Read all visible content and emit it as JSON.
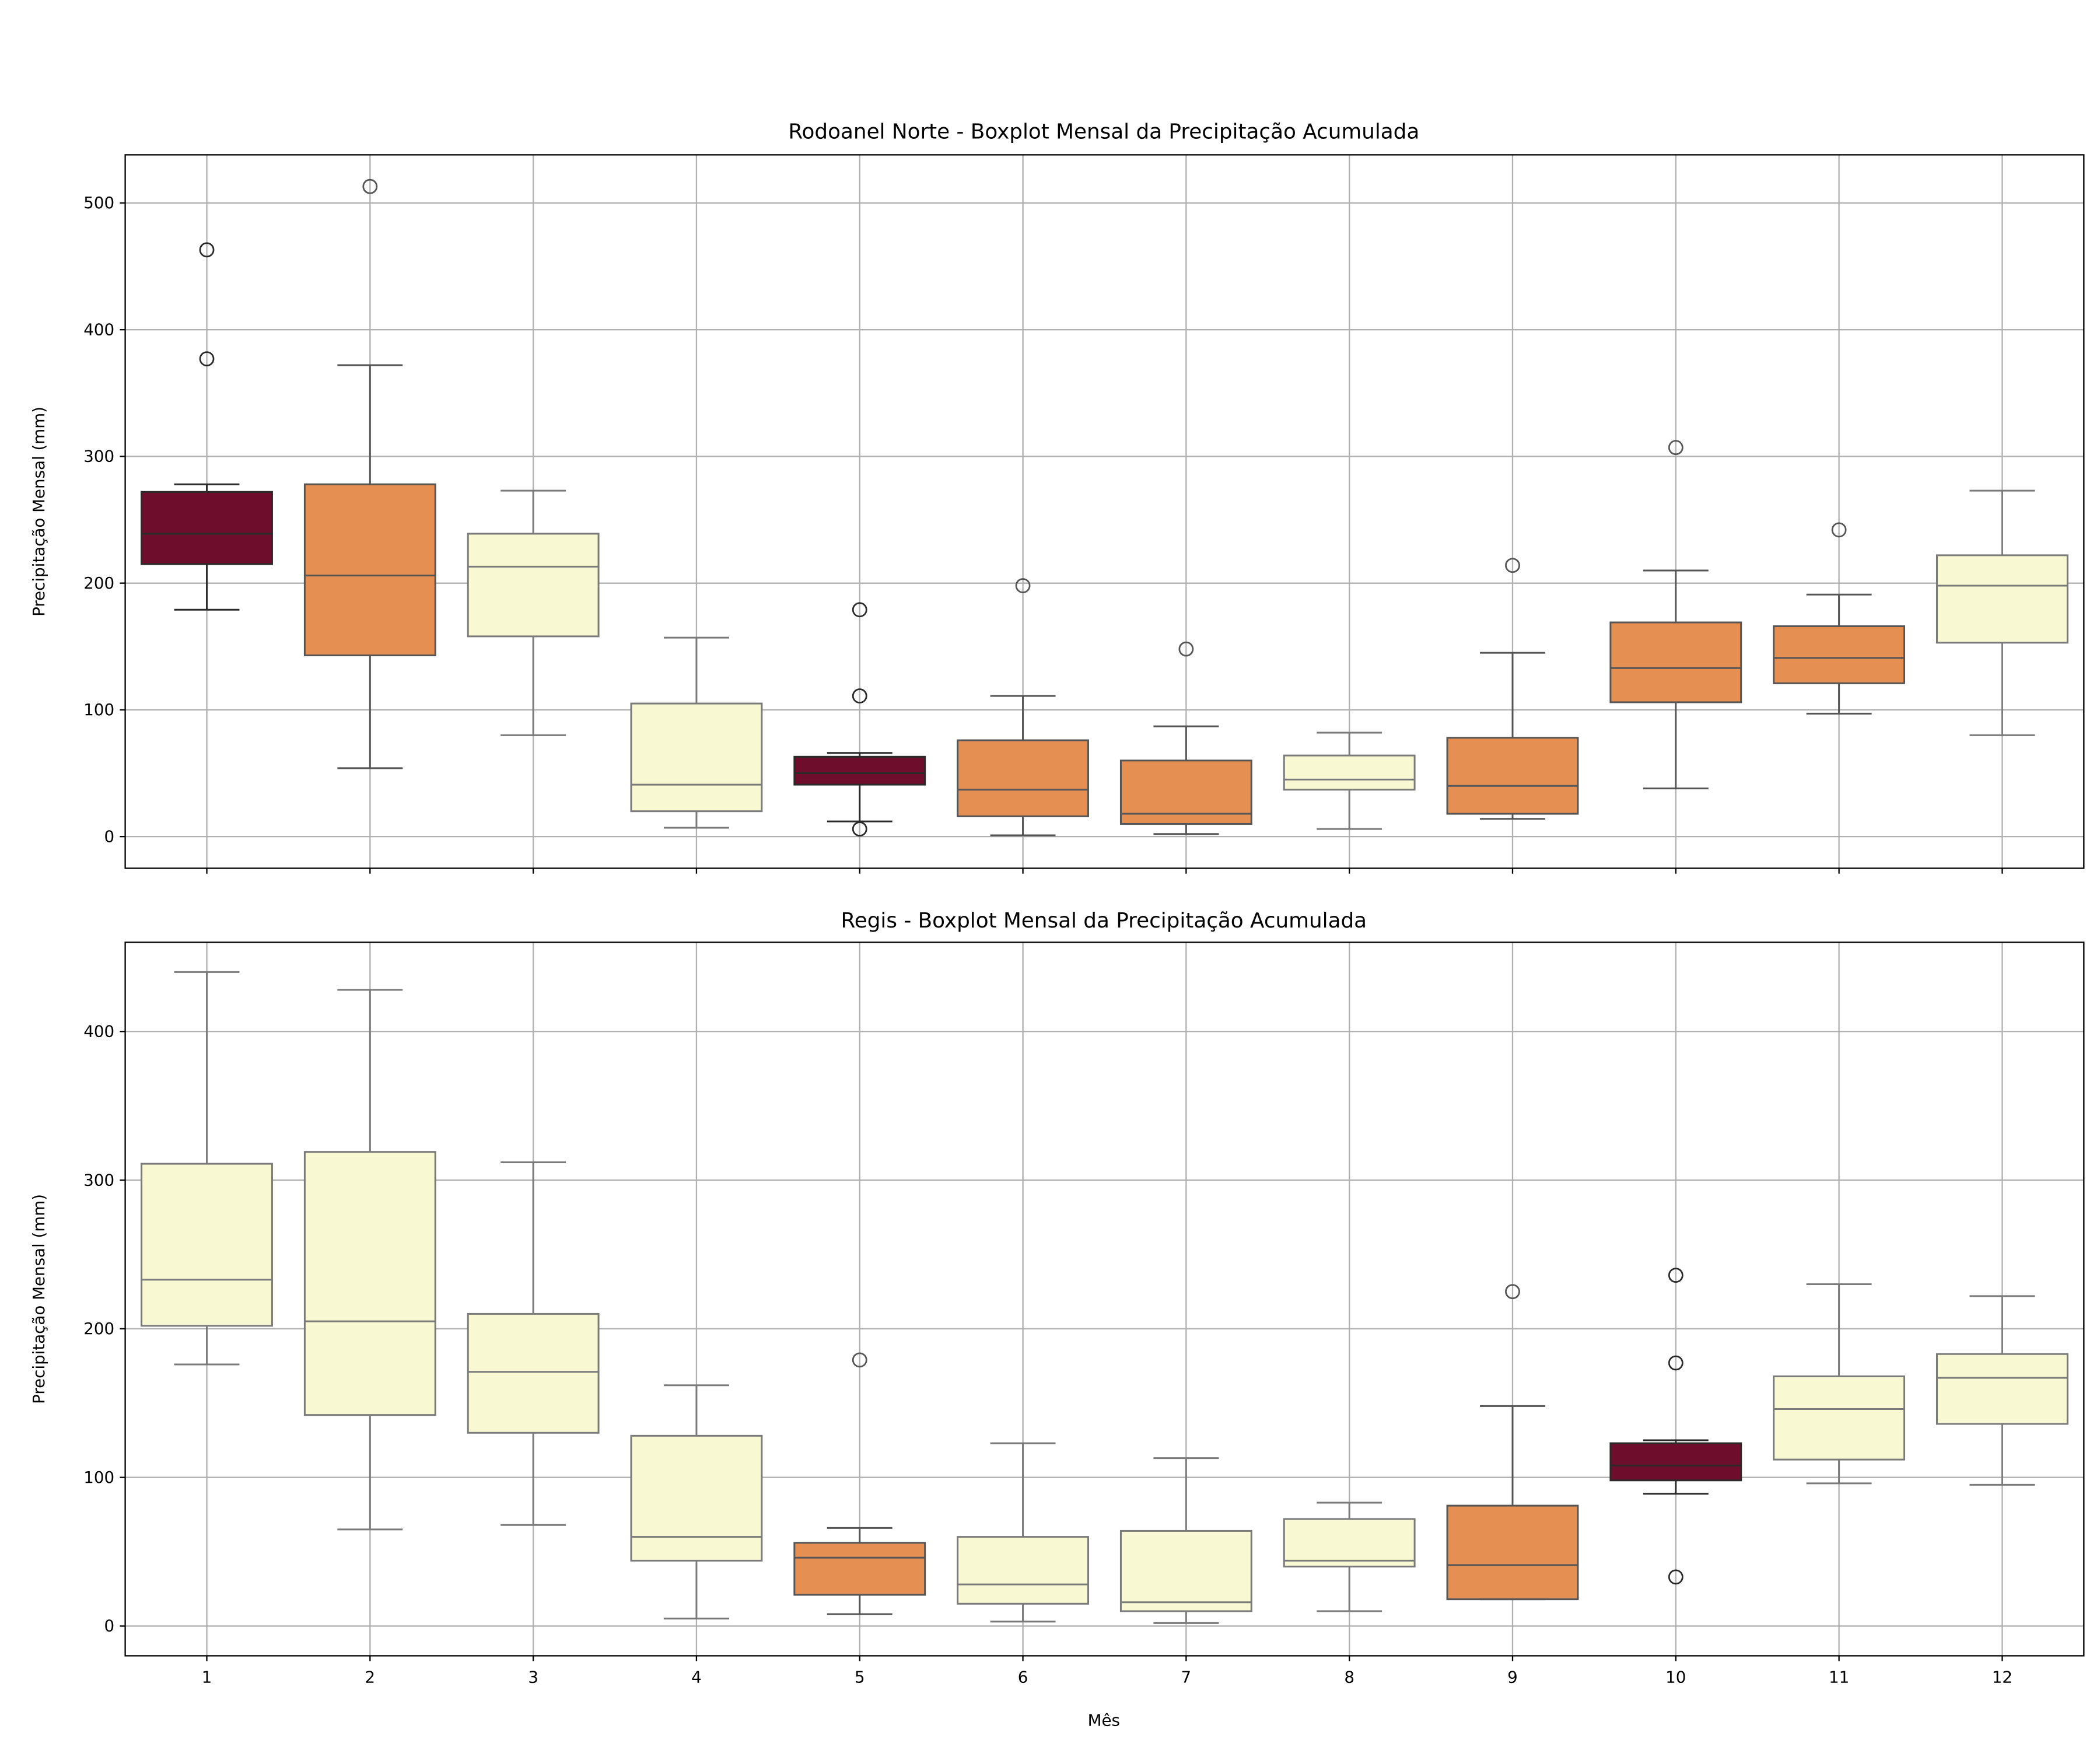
{
  "chart_data": [
    {
      "type": "box",
      "title": "Rodoanel Norte - Boxplot Mensal da Precipitação Acumulada",
      "xlabel": "",
      "ylabel": "Precipitação Mensal (mm)",
      "ylim": [
        -25,
        538
      ],
      "yticks": [
        0,
        100,
        200,
        300,
        400,
        500
      ],
      "grid": true,
      "categories": [
        "1",
        "2",
        "3",
        "4",
        "5",
        "6",
        "7",
        "8",
        "9",
        "10",
        "11",
        "12"
      ],
      "boxes": [
        {
          "month": "1",
          "whislo": 179,
          "q1": 215,
          "med": 239,
          "q3": 272,
          "whishi": 278,
          "fliers": [
            377,
            463
          ],
          "color": "#6e0d2c"
        },
        {
          "month": "2",
          "whislo": 54,
          "q1": 143,
          "med": 206,
          "q3": 278,
          "whishi": 372,
          "fliers": [
            513
          ],
          "color": "#e68f52"
        },
        {
          "month": "3",
          "whislo": 80,
          "q1": 158,
          "med": 213,
          "q3": 239,
          "whishi": 273,
          "fliers": [],
          "color": "#f8f8d2"
        },
        {
          "month": "4",
          "whislo": 7,
          "q1": 20,
          "med": 41,
          "q3": 105,
          "whishi": 157,
          "fliers": [],
          "color": "#f8f8d2"
        },
        {
          "month": "5",
          "whislo": 12,
          "q1": 41,
          "med": 50,
          "q3": 63,
          "whishi": 66,
          "fliers": [
            6,
            111,
            179
          ],
          "color": "#6e0d2c"
        },
        {
          "month": "6",
          "whislo": 1,
          "q1": 16,
          "med": 37,
          "q3": 76,
          "whishi": 111,
          "fliers": [
            198
          ],
          "color": "#e68f52"
        },
        {
          "month": "7",
          "whislo": 2,
          "q1": 10,
          "med": 18,
          "q3": 60,
          "whishi": 87,
          "fliers": [
            148
          ],
          "color": "#e68f52"
        },
        {
          "month": "8",
          "whislo": 6,
          "q1": 37,
          "med": 45,
          "q3": 64,
          "whishi": 82,
          "fliers": [],
          "color": "#f8f8d2"
        },
        {
          "month": "9",
          "whislo": 14,
          "q1": 18,
          "med": 40,
          "q3": 78,
          "whishi": 145,
          "fliers": [
            214
          ],
          "color": "#e68f52"
        },
        {
          "month": "10",
          "whislo": 38,
          "q1": 106,
          "med": 133,
          "q3": 169,
          "whishi": 210,
          "fliers": [
            307
          ],
          "color": "#e68f52"
        },
        {
          "month": "11",
          "whislo": 97,
          "q1": 121,
          "med": 141,
          "q3": 166,
          "whishi": 191,
          "fliers": [
            242
          ],
          "color": "#e68f52"
        },
        {
          "month": "12",
          "whislo": 80,
          "q1": 153,
          "med": 198,
          "q3": 222,
          "whishi": 273,
          "fliers": [],
          "color": "#f8f8d2"
        }
      ]
    },
    {
      "type": "box",
      "title": "Regis - Boxplot Mensal da Precipitação Acumulada",
      "xlabel": "Mês",
      "ylabel": "Precipitação Mensal (mm)",
      "ylim": [
        -20,
        460
      ],
      "yticks": [
        0,
        100,
        200,
        300,
        400
      ],
      "grid": true,
      "categories": [
        "1",
        "2",
        "3",
        "4",
        "5",
        "6",
        "7",
        "8",
        "9",
        "10",
        "11",
        "12"
      ],
      "boxes": [
        {
          "month": "1",
          "whislo": 176,
          "q1": 202,
          "med": 233,
          "q3": 311,
          "whishi": 440,
          "fliers": [],
          "color": "#f8f8d2"
        },
        {
          "month": "2",
          "whislo": 65,
          "q1": 142,
          "med": 205,
          "q3": 319,
          "whishi": 428,
          "fliers": [],
          "color": "#f8f8d2"
        },
        {
          "month": "3",
          "whislo": 68,
          "q1": 130,
          "med": 171,
          "q3": 210,
          "whishi": 312,
          "fliers": [],
          "color": "#f8f8d2"
        },
        {
          "month": "4",
          "whislo": 5,
          "q1": 44,
          "med": 60,
          "q3": 128,
          "whishi": 162,
          "fliers": [],
          "color": "#f8f8d2"
        },
        {
          "month": "5",
          "whislo": 8,
          "q1": 21,
          "med": 46,
          "q3": 56,
          "whishi": 66,
          "fliers": [
            179
          ],
          "color": "#e68f52"
        },
        {
          "month": "6",
          "whislo": 3,
          "q1": 15,
          "med": 28,
          "q3": 60,
          "whishi": 123,
          "fliers": [],
          "color": "#f8f8d2"
        },
        {
          "month": "7",
          "whislo": 2,
          "q1": 10,
          "med": 16,
          "q3": 64,
          "whishi": 113,
          "fliers": [],
          "color": "#f8f8d2"
        },
        {
          "month": "8",
          "whislo": 10,
          "q1": 40,
          "med": 44,
          "q3": 72,
          "whishi": 83,
          "fliers": [],
          "color": "#f8f8d2"
        },
        {
          "month": "9",
          "whislo": 18,
          "q1": 18,
          "med": 41,
          "q3": 81,
          "whishi": 148,
          "fliers": [
            225
          ],
          "color": "#e68f52"
        },
        {
          "month": "10",
          "whislo": 89,
          "q1": 98,
          "med": 108,
          "q3": 123,
          "whishi": 125,
          "fliers": [
            33,
            177,
            236
          ],
          "color": "#6e0d2c"
        },
        {
          "month": "11",
          "whislo": 96,
          "q1": 112,
          "med": 146,
          "q3": 168,
          "whishi": 230,
          "fliers": [],
          "color": "#f8f8d2"
        },
        {
          "month": "12",
          "whislo": 95,
          "q1": 136,
          "med": 167,
          "q3": 183,
          "whishi": 222,
          "fliers": [],
          "color": "#f8f8d2"
        }
      ]
    }
  ]
}
